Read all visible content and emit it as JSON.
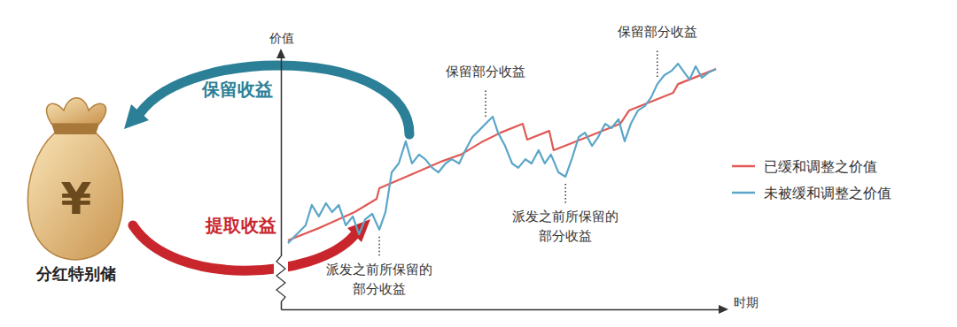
{
  "chart_data": {
    "type": "line",
    "x_label": "时期",
    "y_label": "价值",
    "xlim": [
      0,
      100
    ],
    "ylim": [
      0,
      100
    ],
    "tick_labels": false,
    "grid": false,
    "legend": "right",
    "series": [
      {
        "name": "已缓和调整之价值",
        "color": "#e05a56",
        "x": [
          1.6,
          8.6,
          16.7,
          21.7,
          22.3,
          30.7,
          36.7,
          40.8,
          45.8,
          49.8,
          54.8,
          55.8,
          60.8,
          61.8,
          66.9,
          76.9,
          78.9,
          88.9,
          90.0,
          98.6
        ],
        "values": [
          27.1,
          31.9,
          38.2,
          43.4,
          47.6,
          53.8,
          58.3,
          60.8,
          66.0,
          69.4,
          72.9,
          66.7,
          70.1,
          62.5,
          66.0,
          72.9,
          78.1,
          85.1,
          88.5,
          94.4
        ]
      },
      {
        "name": "未被缓和调整之价值",
        "color": "#5ba6c8",
        "x": [
          1.6,
          3.6,
          5.6,
          7.0,
          8.6,
          10.2,
          11.6,
          13.1,
          14.7,
          16.3,
          17.7,
          19.1,
          20.7,
          22.3,
          23.7,
          25.1,
          26.7,
          28.3,
          29.7,
          31.3,
          32.7,
          34.3,
          35.7,
          37.3,
          38.7,
          40.4,
          41.8,
          43.4,
          44.8,
          46.4,
          48.0,
          49.2,
          50.8,
          52.4,
          53.8,
          55.4,
          56.8,
          58.4,
          59.8,
          61.2,
          62.9,
          64.5,
          65.9,
          67.5,
          68.9,
          70.5,
          71.9,
          73.5,
          74.9,
          76.5,
          77.9,
          79.3,
          80.9,
          82.5,
          83.9,
          85.3,
          86.9,
          88.6,
          90.0,
          91.4,
          92.6,
          94.0,
          95.4,
          97.0,
          98.6
        ],
        "values": [
          26.0,
          29.5,
          33.0,
          41.0,
          36.5,
          41.7,
          38.2,
          41.0,
          33.0,
          36.5,
          29.5,
          35.4,
          37.5,
          31.3,
          38.2,
          53.8,
          57.3,
          66.0,
          57.3,
          60.8,
          59.0,
          55.6,
          53.8,
          57.3,
          59.0,
          57.3,
          62.5,
          67.7,
          70.1,
          72.9,
          75.7,
          69.4,
          64.2,
          57.3,
          55.6,
          59.0,
          57.3,
          62.5,
          57.3,
          60.8,
          53.8,
          52.1,
          59.0,
          67.7,
          69.4,
          64.2,
          67.7,
          72.9,
          71.2,
          74.7,
          66.0,
          72.9,
          78.1,
          79.9,
          83.3,
          88.5,
          92.0,
          93.8,
          96.5,
          93.1,
          90.3,
          95.5,
          91.0,
          93.1,
          94.4
        ]
      }
    ],
    "annotations": [
      {
        "text": [
          "保留部分收益"
        ],
        "points": [
          {
            "x": 46.4,
            "y": 72.9
          },
          {
            "x": 85.3,
            "y": 88.5
          }
        ]
      },
      {
        "text": [
          "派发之前所保留的",
          "部分收益"
        ],
        "points": [
          {
            "x": 22.3,
            "y": 31.3
          },
          {
            "x": 64.5,
            "y": 52.1
          }
        ]
      }
    ]
  },
  "diagram": {
    "bag": {
      "symbol": "¥",
      "label": "分红特别储"
    },
    "arrows": [
      {
        "label": "保留收益",
        "color": "#2b7f96"
      },
      {
        "label": "提取收益",
        "color": "#c8262c"
      }
    ]
  }
}
